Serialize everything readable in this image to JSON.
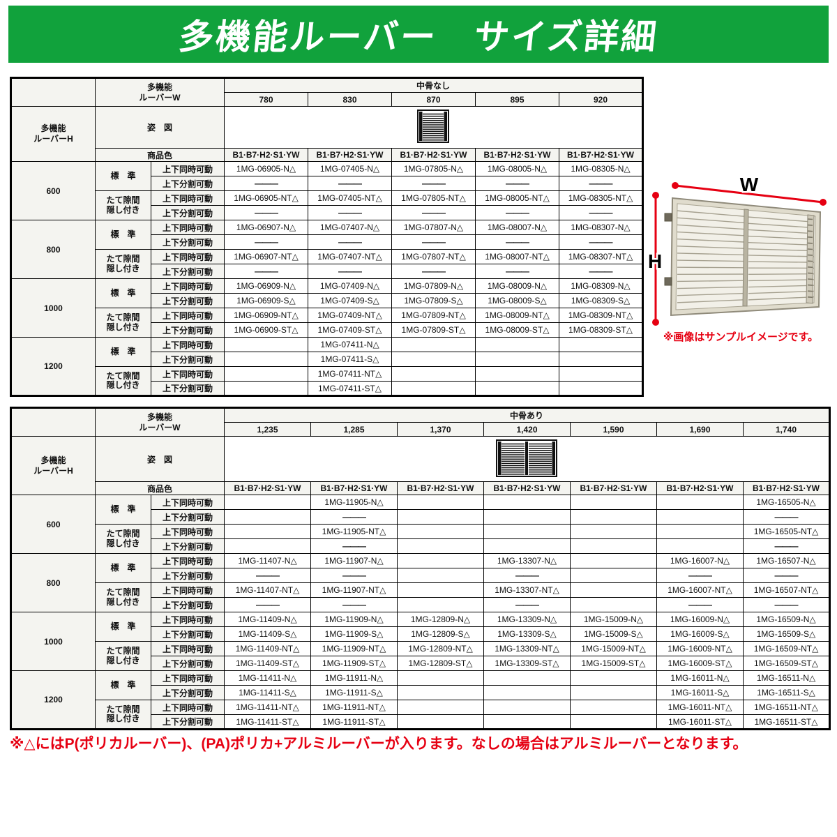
{
  "title": "多機能ルーバー　サイズ詳細",
  "colors": {
    "header_green": "#11a23c",
    "note_red": "#e60012"
  },
  "labels": {
    "w_header": [
      "多機能",
      "ルーバーW"
    ],
    "h_header": [
      "多機能",
      "ルーバーH"
    ],
    "figure": "姿　図",
    "color_row": "商品色",
    "standard": "標　準",
    "tate": [
      "たて隙間",
      "隠し付き"
    ],
    "simultaneous": "上下同時可動",
    "split": "上下分割可動"
  },
  "sample_image": {
    "w_label": "W",
    "h_label": "H",
    "caption": "※画像はサンプルイメージです。"
  },
  "footnote": "※△にはP(ポリカルーバー)、(PA)ポリカ+アルミルーバーが入ります。なしの場合はアルミルーバーとなります。",
  "tables": [
    {
      "name": "no-midrail",
      "group_label": "中骨なし",
      "figure_icon": "louver-panel-icon",
      "widths": [
        "780",
        "830",
        "870",
        "895",
        "920"
      ],
      "color_code": "B1·B7·H2·S1·YW",
      "heights": [
        {
          "label": "600",
          "rows": [
            [
              "1MG-06905-N△",
              "1MG-07405-N△",
              "1MG-07805-N△",
              "1MG-08005-N△",
              "1MG-08305-N△"
            ],
            [
              "———",
              "———",
              "———",
              "———",
              "———"
            ],
            [
              "1MG-06905-NT△",
              "1MG-07405-NT△",
              "1MG-07805-NT△",
              "1MG-08005-NT△",
              "1MG-08305-NT△"
            ],
            [
              "———",
              "———",
              "———",
              "———",
              "———"
            ]
          ]
        },
        {
          "label": "800",
          "rows": [
            [
              "1MG-06907-N△",
              "1MG-07407-N△",
              "1MG-07807-N△",
              "1MG-08007-N△",
              "1MG-08307-N△"
            ],
            [
              "———",
              "———",
              "———",
              "———",
              "———"
            ],
            [
              "1MG-06907-NT△",
              "1MG-07407-NT△",
              "1MG-07807-NT△",
              "1MG-08007-NT△",
              "1MG-08307-NT△"
            ],
            [
              "———",
              "———",
              "———",
              "———",
              "———"
            ]
          ]
        },
        {
          "label": "1000",
          "rows": [
            [
              "1MG-06909-N△",
              "1MG-07409-N△",
              "1MG-07809-N△",
              "1MG-08009-N△",
              "1MG-08309-N△"
            ],
            [
              "1MG-06909-S△",
              "1MG-07409-S△",
              "1MG-07809-S△",
              "1MG-08009-S△",
              "1MG-08309-S△"
            ],
            [
              "1MG-06909-NT△",
              "1MG-07409-NT△",
              "1MG-07809-NT△",
              "1MG-08009-NT△",
              "1MG-08309-NT△"
            ],
            [
              "1MG-06909-ST△",
              "1MG-07409-ST△",
              "1MG-07809-ST△",
              "1MG-08009-ST△",
              "1MG-08309-ST△"
            ]
          ]
        },
        {
          "label": "1200",
          "rows": [
            [
              "",
              "1MG-07411-N△",
              "",
              "",
              ""
            ],
            [
              "",
              "1MG-07411-S△",
              "",
              "",
              ""
            ],
            [
              "",
              "1MG-07411-NT△",
              "",
              "",
              ""
            ],
            [
              "",
              "1MG-07411-ST△",
              "",
              "",
              ""
            ]
          ]
        }
      ]
    },
    {
      "name": "with-midrail",
      "group_label": "中骨あり",
      "figure_icon": "louver-panel-double-icon",
      "widths": [
        "1,235",
        "1,285",
        "1,370",
        "1,420",
        "1,590",
        "1,690",
        "1,740"
      ],
      "color_code": "B1·B7·H2·S1·YW",
      "heights": [
        {
          "label": "600",
          "rows": [
            [
              "",
              "1MG-11905-N△",
              "",
              "",
              "",
              "",
              "1MG-16505-N△"
            ],
            [
              "",
              "———",
              "",
              "",
              "",
              "",
              "———"
            ],
            [
              "",
              "1MG-11905-NT△",
              "",
              "",
              "",
              "",
              "1MG-16505-NT△"
            ],
            [
              "",
              "———",
              "",
              "",
              "",
              "",
              "———"
            ]
          ]
        },
        {
          "label": "800",
          "rows": [
            [
              "1MG-11407-N△",
              "1MG-11907-N△",
              "",
              "1MG-13307-N△",
              "",
              "1MG-16007-N△",
              "1MG-16507-N△"
            ],
            [
              "———",
              "———",
              "",
              "———",
              "",
              "———",
              "———"
            ],
            [
              "1MG-11407-NT△",
              "1MG-11907-NT△",
              "",
              "1MG-13307-NT△",
              "",
              "1MG-16007-NT△",
              "1MG-16507-NT△"
            ],
            [
              "———",
              "———",
              "",
              "———",
              "",
              "———",
              "———"
            ]
          ]
        },
        {
          "label": "1000",
          "rows": [
            [
              "1MG-11409-N△",
              "1MG-11909-N△",
              "1MG-12809-N△",
              "1MG-13309-N△",
              "1MG-15009-N△",
              "1MG-16009-N△",
              "1MG-16509-N△"
            ],
            [
              "1MG-11409-S△",
              "1MG-11909-S△",
              "1MG-12809-S△",
              "1MG-13309-S△",
              "1MG-15009-S△",
              "1MG-16009-S△",
              "1MG-16509-S△"
            ],
            [
              "1MG-11409-NT△",
              "1MG-11909-NT△",
              "1MG-12809-NT△",
              "1MG-13309-NT△",
              "1MG-15009-NT△",
              "1MG-16009-NT△",
              "1MG-16509-NT△"
            ],
            [
              "1MG-11409-ST△",
              "1MG-11909-ST△",
              "1MG-12809-ST△",
              "1MG-13309-ST△",
              "1MG-15009-ST△",
              "1MG-16009-ST△",
              "1MG-16509-ST△"
            ]
          ]
        },
        {
          "label": "1200",
          "rows": [
            [
              "1MG-11411-N△",
              "1MG-11911-N△",
              "",
              "",
              "",
              "1MG-16011-N△",
              "1MG-16511-N△"
            ],
            [
              "1MG-11411-S△",
              "1MG-11911-S△",
              "",
              "",
              "",
              "1MG-16011-S△",
              "1MG-16511-S△"
            ],
            [
              "1MG-11411-NT△",
              "1MG-11911-NT△",
              "",
              "",
              "",
              "1MG-16011-NT△",
              "1MG-16511-NT△"
            ],
            [
              "1MG-11411-ST△",
              "1MG-11911-ST△",
              "",
              "",
              "",
              "1MG-16011-ST△",
              "1MG-16511-ST△"
            ]
          ]
        }
      ]
    }
  ]
}
